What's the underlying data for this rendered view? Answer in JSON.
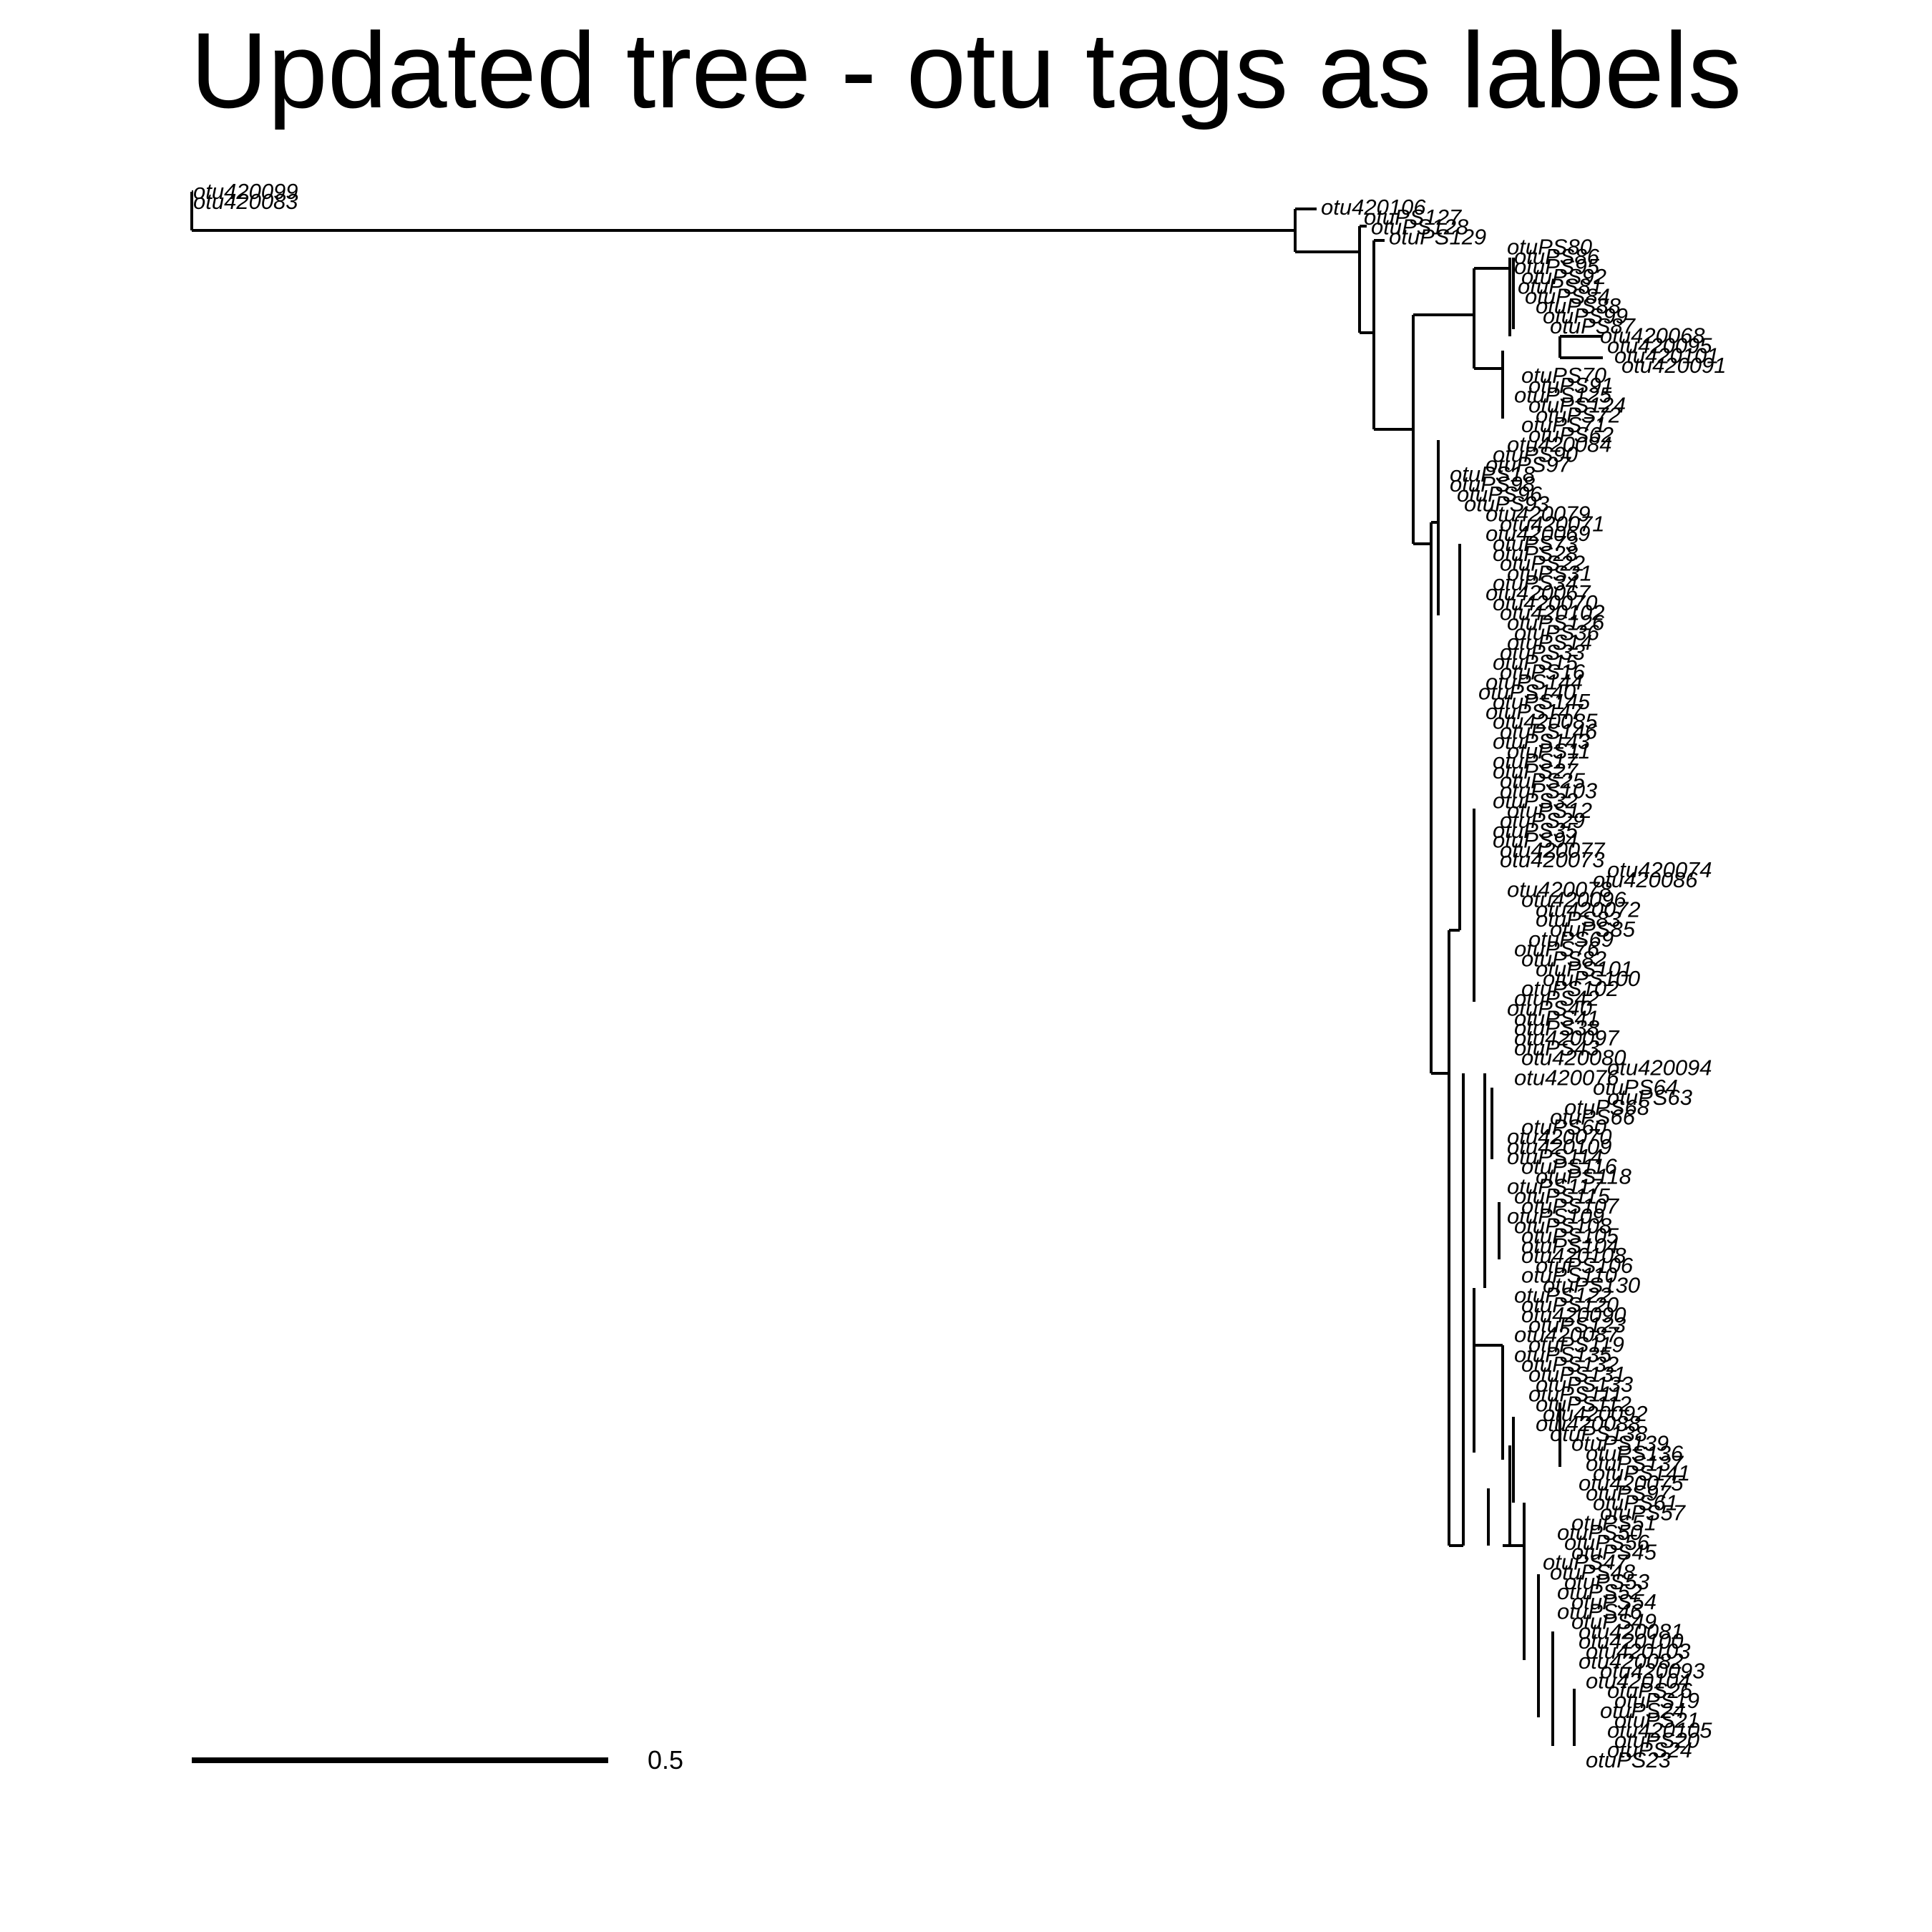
{
  "title": "Updated tree - otu tags as labels",
  "scale_bar": {
    "label": "0.5",
    "length": 0.5
  },
  "tips": [
    "otu420099",
    "otu420083",
    "otu420106",
    "otuPS127",
    "otuPS128",
    "otuPS129",
    "otuPS80",
    "otuPS86",
    "otuPS95",
    "otuPS92",
    "otuPS81",
    "otuPS84",
    "otuPS88",
    "otuPS99",
    "otuPS87",
    "otu420068",
    "otu420095",
    "otu420101",
    "otu420091",
    "otuPS70",
    "otuPS91",
    "otuPS125",
    "otuPS124",
    "otuPS72",
    "otuPS71",
    "otuPS62",
    "otu420084",
    "otuPS90",
    "otuPS97",
    "otuPS18",
    "otuPS98",
    "otuPS96",
    "otuPS93",
    "otu420079",
    "otu420071",
    "otu420069",
    "otuPS73",
    "otuPS28",
    "otuPS22",
    "otuPS31",
    "otuPS34",
    "otu420067",
    "otu420070",
    "otu420102",
    "otuPS126",
    "otuPS36",
    "otuPS14",
    "otuPS33",
    "otuPS15",
    "otuPS16",
    "otuPS144",
    "otuPS140",
    "otuPS145",
    "otuPS147",
    "otu420085",
    "otuPS146",
    "otuPS143",
    "otuPS11",
    "otuPS17",
    "otuPS27",
    "otuPS25",
    "otuPS103",
    "otuPS32",
    "otuPS12",
    "otuPS29",
    "otuPS35",
    "otuPS94",
    "otu420077",
    "otu420073",
    "otu420074",
    "otu420086",
    "otu420078",
    "otu420096",
    "otu420072",
    "otuPS83",
    "otuPS85",
    "otuPS69",
    "otuPS76",
    "otuPS82",
    "otuPS101",
    "otuPS100",
    "otuPS102",
    "otuPS42",
    "otuPS40",
    "otuPS41",
    "otuPS38",
    "otu420097",
    "otuPS43",
    "otu420080",
    "otu420094",
    "otu420076",
    "otuPS64",
    "otuPS63",
    "otuPS68",
    "otuPS66",
    "otuPS60",
    "otu420070",
    "otu420109",
    "otuPS114",
    "otuPS116",
    "otuPS118",
    "otuPS117",
    "otuPS115",
    "otuPS107",
    "otuPS109",
    "otuPS108",
    "otuPS105",
    "otuPS104",
    "otu420108",
    "otuPS106",
    "otuPS110",
    "otuPS130",
    "otuPS122",
    "otuPS120",
    "otu420090",
    "otuPS123",
    "otu420087",
    "otuPS119",
    "otuPS135",
    "otuPS132",
    "otuPS131",
    "otuPS133",
    "otuPS111",
    "otuPS112",
    "otu420092",
    "otu420088",
    "otuPS138",
    "otuPS139",
    "otuPS136",
    "otuPS137",
    "otuPS141",
    "otu420075",
    "otuPS97",
    "otuPS61",
    "otuPS57",
    "otuPS51",
    "otuPS50",
    "otuPS56",
    "otuPS45",
    "otuPS47",
    "otuPS48",
    "otuPS53",
    "otuPS52",
    "otuPS54",
    "otuPS46",
    "otuPS49",
    "otu420081",
    "otu420100",
    "otu420103",
    "otu420082",
    "otu420093",
    "otu420104",
    "otuPS26",
    "otuPS19",
    "otuPS24",
    "otuPS21",
    "otu420105",
    "otuPS20",
    "otuPS24",
    "otuPS23"
  ]
}
